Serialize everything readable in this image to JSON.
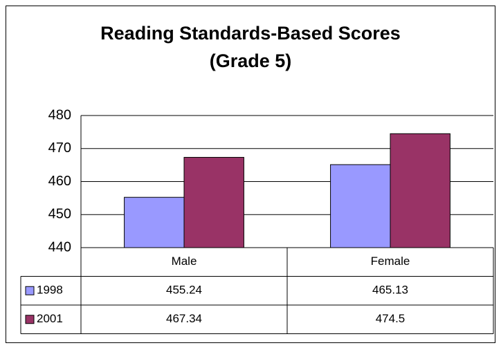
{
  "chart_data": {
    "type": "bar",
    "title": "Reading Standards-Based Scores (Grade 5)",
    "categories": [
      "Male",
      "Female"
    ],
    "series": [
      {
        "name": "1998",
        "color": "#9999ff",
        "values": [
          455.24,
          465.13
        ]
      },
      {
        "name": "2001",
        "color": "#993366",
        "values": [
          467.34,
          474.5
        ]
      }
    ],
    "ylim": [
      440,
      480
    ],
    "yticks": [
      440,
      450,
      460,
      470,
      480
    ],
    "grid": true,
    "data_table": true
  }
}
